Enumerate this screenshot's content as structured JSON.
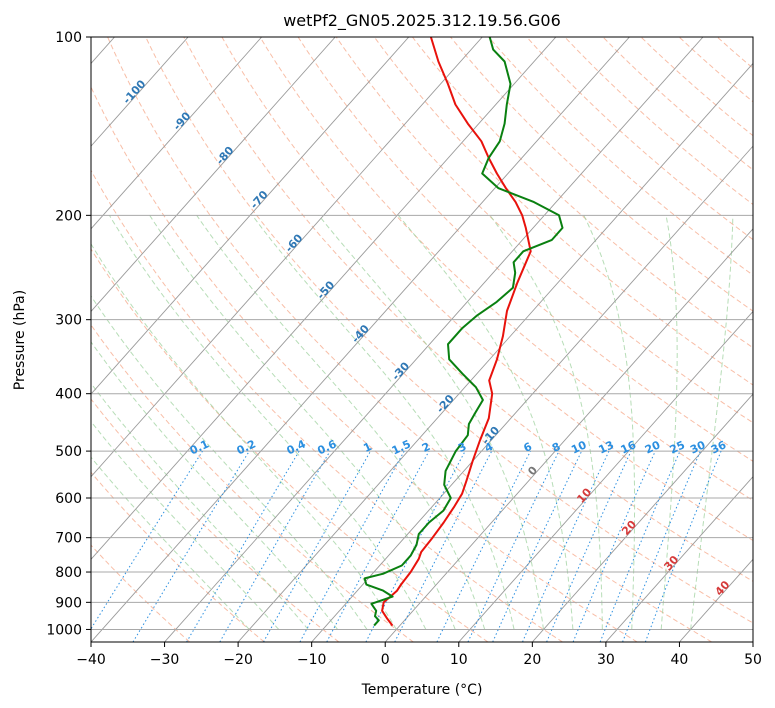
{
  "chart_data": {
    "type": "skew-t",
    "title": "wetPf2_GN05.2025.312.19.56.G06",
    "xlabel": "Temperature (°C)",
    "ylabel": "Pressure (hPa)",
    "xlim": [
      -40,
      50
    ],
    "ylim": [
      1050,
      100
    ],
    "x_ticks": [
      -40,
      -30,
      -20,
      -10,
      0,
      10,
      20,
      30,
      40,
      50
    ],
    "y_ticks": [
      100,
      200,
      300,
      400,
      500,
      600,
      700,
      800,
      900,
      1000
    ],
    "y_scale": "log",
    "grid": true,
    "temperature_series": {
      "color": "#e8120c",
      "points": [
        {
          "p": 985,
          "t": -1.0
        },
        {
          "p": 960,
          "t": -2.5
        },
        {
          "p": 930,
          "t": -4.2
        },
        {
          "p": 900,
          "t": -5.0
        },
        {
          "p": 880,
          "t": -4.8
        },
        {
          "p": 860,
          "t": -4.6
        },
        {
          "p": 840,
          "t": -4.8
        },
        {
          "p": 800,
          "t": -5.0
        },
        {
          "p": 760,
          "t": -5.5
        },
        {
          "p": 740,
          "t": -6.0
        },
        {
          "p": 700,
          "t": -6.2
        },
        {
          "p": 660,
          "t": -6.5
        },
        {
          "p": 620,
          "t": -7.0
        },
        {
          "p": 590,
          "t": -7.5
        },
        {
          "p": 560,
          "t": -8.5
        },
        {
          "p": 520,
          "t": -10.0
        },
        {
          "p": 480,
          "t": -11.5
        },
        {
          "p": 440,
          "t": -13.0
        },
        {
          "p": 400,
          "t": -15.5
        },
        {
          "p": 380,
          "t": -17.5
        },
        {
          "p": 350,
          "t": -19.0
        },
        {
          "p": 320,
          "t": -21.0
        },
        {
          "p": 290,
          "t": -23.5
        },
        {
          "p": 260,
          "t": -25.5
        },
        {
          "p": 230,
          "t": -27.5
        },
        {
          "p": 210,
          "t": -31.0
        },
        {
          "p": 200,
          "t": -33.0
        },
        {
          "p": 190,
          "t": -35.5
        },
        {
          "p": 180,
          "t": -38.5
        },
        {
          "p": 170,
          "t": -41.5
        },
        {
          "p": 160,
          "t": -44.5
        },
        {
          "p": 150,
          "t": -47.5
        },
        {
          "p": 140,
          "t": -51.5
        },
        {
          "p": 130,
          "t": -55.5
        },
        {
          "p": 120,
          "t": -59.0
        },
        {
          "p": 110,
          "t": -63.0
        },
        {
          "p": 100,
          "t": -67.0
        }
      ]
    },
    "dewpoint_series": {
      "color": "#0a8010",
      "points": [
        {
          "p": 985,
          "t": -3.5
        },
        {
          "p": 965,
          "t": -3.5
        },
        {
          "p": 950,
          "t": -4.5
        },
        {
          "p": 930,
          "t": -5.0
        },
        {
          "p": 905,
          "t": -6.5
        },
        {
          "p": 880,
          "t": -4.5
        },
        {
          "p": 860,
          "t": -6.5
        },
        {
          "p": 840,
          "t": -9.5
        },
        {
          "p": 820,
          "t": -10.5
        },
        {
          "p": 805,
          "t": -8.5
        },
        {
          "p": 780,
          "t": -7.0
        },
        {
          "p": 750,
          "t": -7.0
        },
        {
          "p": 720,
          "t": -7.5
        },
        {
          "p": 690,
          "t": -8.5
        },
        {
          "p": 660,
          "t": -8.5
        },
        {
          "p": 630,
          "t": -8.0
        },
        {
          "p": 600,
          "t": -8.5
        },
        {
          "p": 570,
          "t": -11.0
        },
        {
          "p": 540,
          "t": -12.5
        },
        {
          "p": 500,
          "t": -13.5
        },
        {
          "p": 470,
          "t": -13.8
        },
        {
          "p": 450,
          "t": -15.0
        },
        {
          "p": 430,
          "t": -15.5
        },
        {
          "p": 410,
          "t": -16.0
        },
        {
          "p": 390,
          "t": -18.5
        },
        {
          "p": 370,
          "t": -22.0
        },
        {
          "p": 350,
          "t": -25.5
        },
        {
          "p": 330,
          "t": -27.5
        },
        {
          "p": 320,
          "t": -27.5
        },
        {
          "p": 310,
          "t": -27.5
        },
        {
          "p": 295,
          "t": -27.0
        },
        {
          "p": 280,
          "t": -26.0
        },
        {
          "p": 265,
          "t": -25.5
        },
        {
          "p": 250,
          "t": -27.0
        },
        {
          "p": 240,
          "t": -28.5
        },
        {
          "p": 230,
          "t": -28.5
        },
        {
          "p": 220,
          "t": -26.0
        },
        {
          "p": 210,
          "t": -26.0
        },
        {
          "p": 200,
          "t": -28.0
        },
        {
          "p": 190,
          "t": -33.0
        },
        {
          "p": 180,
          "t": -39.5
        },
        {
          "p": 170,
          "t": -43.5
        },
        {
          "p": 160,
          "t": -44.5
        },
        {
          "p": 150,
          "t": -45.0
        },
        {
          "p": 140,
          "t": -46.5
        },
        {
          "p": 130,
          "t": -48.5
        },
        {
          "p": 120,
          "t": -50.5
        },
        {
          "p": 110,
          "t": -54.0
        },
        {
          "p": 105,
          "t": -57.0
        },
        {
          "p": 100,
          "t": -59.0
        }
      ]
    },
    "isotherm_labels": [
      {
        "text": "-100",
        "t": -100,
        "p": 125
      },
      {
        "text": "-90",
        "t": -90,
        "p": 140
      },
      {
        "text": "-80",
        "t": -80,
        "p": 160
      },
      {
        "text": "-70",
        "t": -70,
        "p": 190
      },
      {
        "text": "-60",
        "t": -60,
        "p": 225
      },
      {
        "text": "-50",
        "t": -50,
        "p": 270
      },
      {
        "text": "-40",
        "t": -40,
        "p": 320
      },
      {
        "text": "-30",
        "t": -30,
        "p": 370
      },
      {
        "text": "-20",
        "t": -20,
        "p": 420
      },
      {
        "text": "-10",
        "t": -10,
        "p": 475
      }
    ],
    "mixing_ratio_labels": [
      "0.1",
      "0.2",
      "0.4",
      "0.6",
      "1",
      "1.5",
      "2",
      "3",
      "4",
      "6",
      "8",
      "10",
      "13",
      "16",
      "20",
      "25",
      "30",
      "36"
    ],
    "mixing_ratio_values": [
      0.1,
      0.2,
      0.4,
      0.6,
      1,
      1.5,
      2,
      3,
      4,
      6,
      8,
      10,
      13,
      16,
      20,
      25,
      30,
      36
    ],
    "positive_temp_labels": [
      {
        "text": "0",
        "t": 0,
        "p": 545
      },
      {
        "text": "10",
        "t": 10,
        "p": 600
      },
      {
        "text": "20",
        "t": 20,
        "p": 680
      },
      {
        "text": "30",
        "t": 30,
        "p": 780
      },
      {
        "text": "40",
        "t": 40,
        "p": 860
      }
    ]
  }
}
